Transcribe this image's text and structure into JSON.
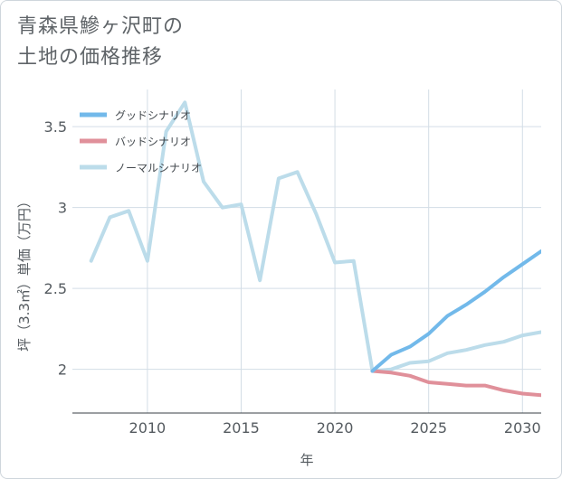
{
  "title_lines": [
    "青森県鰺ヶ沢町の",
    "土地の価格推移"
  ],
  "chart_data": {
    "type": "line",
    "xlabel": "年",
    "ylabel": "坪（3.3㎡）単価（万円）",
    "xlim": [
      2006,
      2031
    ],
    "ylim": [
      1.73,
      3.73
    ],
    "xticks": [
      2010,
      2015,
      2020,
      2025,
      2030
    ],
    "yticks": [
      2,
      2.5,
      3,
      3.5
    ],
    "xtick_labels": [
      "2010",
      "2015",
      "2020",
      "2025",
      "2030"
    ],
    "ytick_labels": [
      "2",
      "2.5",
      "3",
      "3.5"
    ],
    "legend_position": "top-left",
    "series": [
      {
        "name": "グッドシナリオ",
        "color": "#72b9ea",
        "x": [
          2022,
          2023,
          2024,
          2025,
          2026,
          2027,
          2028,
          2029,
          2030,
          2031
        ],
        "values": [
          1.99,
          2.09,
          2.14,
          2.22,
          2.33,
          2.4,
          2.48,
          2.57,
          2.65,
          2.73
        ]
      },
      {
        "name": "バッドシナリオ",
        "color": "#e0909a",
        "x": [
          2022,
          2023,
          2024,
          2025,
          2026,
          2027,
          2028,
          2029,
          2030,
          2031
        ],
        "values": [
          1.99,
          1.98,
          1.96,
          1.92,
          1.91,
          1.9,
          1.9,
          1.87,
          1.85,
          1.84
        ]
      },
      {
        "name": "ノーマルシナリオ",
        "color": "#bcdcea",
        "x": [
          2007,
          2008,
          2009,
          2010,
          2011,
          2012,
          2013,
          2014,
          2015,
          2016,
          2017,
          2018,
          2019,
          2020,
          2021,
          2022,
          2023,
          2024,
          2025,
          2026,
          2027,
          2028,
          2029,
          2030,
          2031
        ],
        "values": [
          2.67,
          2.94,
          2.98,
          2.67,
          3.47,
          3.65,
          3.16,
          3.0,
          3.02,
          2.55,
          3.18,
          3.22,
          2.96,
          2.66,
          2.67,
          1.99,
          2.0,
          2.04,
          2.05,
          2.1,
          2.12,
          2.15,
          2.17,
          2.21,
          2.23
        ]
      }
    ]
  }
}
